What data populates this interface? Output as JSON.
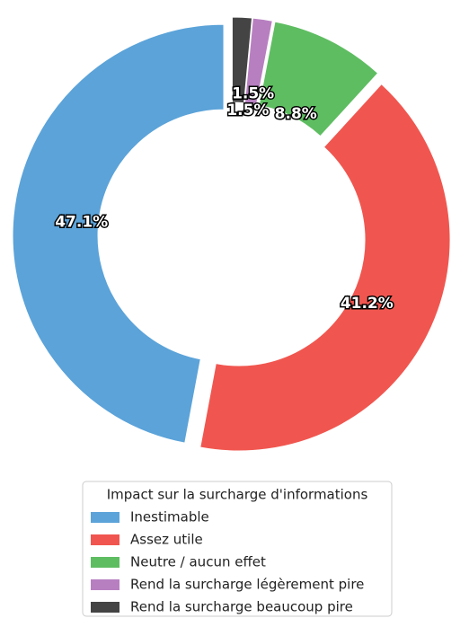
{
  "chart_data": {
    "type": "donut",
    "categories": [
      "Inestimable",
      "Assez utile",
      "Neutre / aucun effet",
      "Rend la surcharge légèrement pire",
      "Rend la surcharge beaucoup pire"
    ],
    "values": [
      47.1,
      41.2,
      8.8,
      1.5,
      1.5
    ],
    "value_labels": [
      "47.1%",
      "41.2%",
      "8.8%",
      "1.5%",
      "1.5%"
    ],
    "colors": [
      "#5ba3d9",
      "#f0564f",
      "#5ebd61",
      "#b77fc0",
      "#444444"
    ],
    "legend_title": "Impact sur la surcharge d'informations",
    "legend": "lower center"
  }
}
